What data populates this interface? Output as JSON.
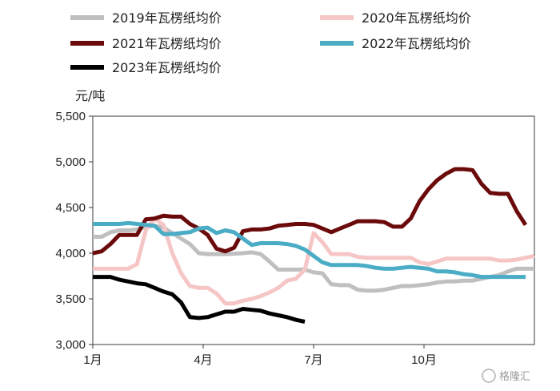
{
  "chart_data": {
    "type": "line",
    "ylabel": "元/吨",
    "ylim": [
      3000,
      5500
    ],
    "yticks": [
      3000,
      3500,
      4000,
      4500,
      5000,
      5500
    ],
    "ytick_labels": [
      "3,000",
      "3,500",
      "4,000",
      "4,500",
      "5,000",
      "5,500"
    ],
    "x_unit": "week",
    "xlim": [
      0,
      50
    ],
    "xticks": [
      {
        "x": 0,
        "label": "1月"
      },
      {
        "x": 12.5,
        "label": "4月"
      },
      {
        "x": 25,
        "label": "7月"
      },
      {
        "x": 37.5,
        "label": "10月"
      }
    ],
    "legend_placement": "top",
    "grid": false,
    "series": [
      {
        "name": "2019年瓦楞纸均价",
        "color": "#bfbfbf",
        "points": [
          [
            0,
            4180
          ],
          [
            1,
            4180
          ],
          [
            2,
            4230
          ],
          [
            3,
            4250
          ],
          [
            4,
            4250
          ],
          [
            5,
            4260
          ],
          [
            6,
            4290
          ],
          [
            7,
            4300
          ],
          [
            8,
            4280
          ],
          [
            9,
            4220
          ],
          [
            10,
            4160
          ],
          [
            11,
            4100
          ],
          [
            12,
            4000
          ],
          [
            13,
            3990
          ],
          [
            14,
            3990
          ],
          [
            15,
            3990
          ],
          [
            16,
            3995
          ],
          [
            17,
            4000
          ],
          [
            18,
            4010
          ],
          [
            19,
            3990
          ],
          [
            20,
            3910
          ],
          [
            21,
            3820
          ],
          [
            22,
            3820
          ],
          [
            23,
            3820
          ],
          [
            24,
            3820
          ],
          [
            25,
            3790
          ],
          [
            26,
            3780
          ],
          [
            27,
            3660
          ],
          [
            28,
            3650
          ],
          [
            29,
            3650
          ],
          [
            30,
            3600
          ],
          [
            31,
            3590
          ],
          [
            32,
            3590
          ],
          [
            33,
            3600
          ],
          [
            34,
            3620
          ],
          [
            35,
            3640
          ],
          [
            36,
            3640
          ],
          [
            37,
            3650
          ],
          [
            38,
            3660
          ],
          [
            39,
            3680
          ],
          [
            40,
            3690
          ],
          [
            41,
            3690
          ],
          [
            42,
            3700
          ],
          [
            43,
            3700
          ],
          [
            44,
            3720
          ],
          [
            45,
            3740
          ],
          [
            46,
            3760
          ],
          [
            47,
            3800
          ],
          [
            48,
            3830
          ],
          [
            49,
            3830
          ],
          [
            50,
            3830
          ]
        ]
      },
      {
        "name": "2020年瓦楞纸均价",
        "color": "#f6c6c6",
        "points": [
          [
            0,
            3830
          ],
          [
            1,
            3830
          ],
          [
            2,
            3830
          ],
          [
            3,
            3830
          ],
          [
            4,
            3830
          ],
          [
            5,
            3880
          ],
          [
            6,
            4250
          ],
          [
            7,
            4380
          ],
          [
            8,
            4310
          ],
          [
            9,
            4000
          ],
          [
            10,
            3780
          ],
          [
            11,
            3640
          ],
          [
            12,
            3620
          ],
          [
            13,
            3620
          ],
          [
            14,
            3560
          ],
          [
            15,
            3450
          ],
          [
            16,
            3450
          ],
          [
            17,
            3480
          ],
          [
            18,
            3500
          ],
          [
            19,
            3530
          ],
          [
            20,
            3570
          ],
          [
            21,
            3620
          ],
          [
            22,
            3700
          ],
          [
            23,
            3720
          ],
          [
            24,
            3820
          ],
          [
            25,
            4220
          ],
          [
            26,
            4120
          ],
          [
            27,
            3990
          ],
          [
            28,
            3990
          ],
          [
            29,
            3990
          ],
          [
            30,
            3960
          ],
          [
            31,
            3950
          ],
          [
            32,
            3950
          ],
          [
            33,
            3950
          ],
          [
            34,
            3950
          ],
          [
            35,
            3950
          ],
          [
            36,
            3950
          ],
          [
            37,
            3900
          ],
          [
            38,
            3880
          ],
          [
            39,
            3910
          ],
          [
            40,
            3940
          ],
          [
            41,
            3940
          ],
          [
            42,
            3940
          ],
          [
            43,
            3940
          ],
          [
            44,
            3940
          ],
          [
            45,
            3940
          ],
          [
            46,
            3920
          ],
          [
            47,
            3920
          ],
          [
            48,
            3930
          ],
          [
            49,
            3950
          ],
          [
            50,
            3970
          ]
        ]
      },
      {
        "name": "2021年瓦楞纸均价",
        "color": "#6b0a0a",
        "points": [
          [
            0,
            4000
          ],
          [
            1,
            4020
          ],
          [
            2,
            4100
          ],
          [
            3,
            4200
          ],
          [
            4,
            4200
          ],
          [
            5,
            4200
          ],
          [
            6,
            4370
          ],
          [
            7,
            4380
          ],
          [
            8,
            4410
          ],
          [
            9,
            4400
          ],
          [
            10,
            4400
          ],
          [
            11,
            4320
          ],
          [
            12,
            4270
          ],
          [
            13,
            4200
          ],
          [
            14,
            4050
          ],
          [
            15,
            4020
          ],
          [
            16,
            4060
          ],
          [
            17,
            4240
          ],
          [
            18,
            4260
          ],
          [
            19,
            4260
          ],
          [
            20,
            4270
          ],
          [
            21,
            4300
          ],
          [
            22,
            4310
          ],
          [
            23,
            4320
          ],
          [
            24,
            4320
          ],
          [
            25,
            4310
          ],
          [
            26,
            4270
          ],
          [
            27,
            4230
          ],
          [
            28,
            4270
          ],
          [
            29,
            4310
          ],
          [
            30,
            4350
          ],
          [
            31,
            4350
          ],
          [
            32,
            4350
          ],
          [
            33,
            4340
          ],
          [
            34,
            4290
          ],
          [
            35,
            4290
          ],
          [
            36,
            4380
          ],
          [
            37,
            4570
          ],
          [
            38,
            4700
          ],
          [
            39,
            4800
          ],
          [
            40,
            4870
          ],
          [
            41,
            4920
          ],
          [
            42,
            4920
          ],
          [
            43,
            4910
          ],
          [
            44,
            4760
          ],
          [
            45,
            4660
          ],
          [
            46,
            4650
          ],
          [
            47,
            4650
          ],
          [
            48,
            4460
          ],
          [
            49,
            4310
          ]
        ]
      },
      {
        "name": "2022年瓦楞纸均价",
        "color": "#4bacc6",
        "points": [
          [
            0,
            4320
          ],
          [
            1,
            4320
          ],
          [
            2,
            4320
          ],
          [
            3,
            4320
          ],
          [
            4,
            4330
          ],
          [
            5,
            4320
          ],
          [
            6,
            4310
          ],
          [
            7,
            4300
          ],
          [
            8,
            4210
          ],
          [
            9,
            4210
          ],
          [
            10,
            4220
          ],
          [
            11,
            4230
          ],
          [
            12,
            4270
          ],
          [
            13,
            4280
          ],
          [
            14,
            4220
          ],
          [
            15,
            4250
          ],
          [
            16,
            4230
          ],
          [
            17,
            4160
          ],
          [
            18,
            4090
          ],
          [
            19,
            4110
          ],
          [
            20,
            4110
          ],
          [
            21,
            4110
          ],
          [
            22,
            4100
          ],
          [
            23,
            4080
          ],
          [
            24,
            4040
          ],
          [
            25,
            3970
          ],
          [
            26,
            3900
          ],
          [
            27,
            3870
          ],
          [
            28,
            3870
          ],
          [
            29,
            3870
          ],
          [
            30,
            3870
          ],
          [
            31,
            3860
          ],
          [
            32,
            3840
          ],
          [
            33,
            3830
          ],
          [
            34,
            3830
          ],
          [
            35,
            3840
          ],
          [
            36,
            3850
          ],
          [
            37,
            3840
          ],
          [
            38,
            3830
          ],
          [
            39,
            3800
          ],
          [
            40,
            3800
          ],
          [
            41,
            3790
          ],
          [
            42,
            3770
          ],
          [
            43,
            3760
          ],
          [
            44,
            3740
          ],
          [
            45,
            3740
          ],
          [
            46,
            3740
          ],
          [
            47,
            3740
          ],
          [
            48,
            3740
          ],
          [
            49,
            3740
          ]
        ]
      },
      {
        "name": "2023年瓦楞纸均价",
        "color": "#000000",
        "points": [
          [
            0,
            3740
          ],
          [
            1,
            3740
          ],
          [
            2,
            3740
          ],
          [
            3,
            3710
          ],
          [
            4,
            3690
          ],
          [
            5,
            3670
          ],
          [
            6,
            3660
          ],
          [
            7,
            3620
          ],
          [
            8,
            3580
          ],
          [
            9,
            3550
          ],
          [
            10,
            3460
          ],
          [
            11,
            3300
          ],
          [
            12,
            3290
          ],
          [
            13,
            3300
          ],
          [
            14,
            3330
          ],
          [
            15,
            3360
          ],
          [
            16,
            3360
          ],
          [
            17,
            3390
          ],
          [
            18,
            3380
          ],
          [
            19,
            3370
          ],
          [
            20,
            3340
          ],
          [
            21,
            3320
          ],
          [
            22,
            3300
          ],
          [
            23,
            3270
          ],
          [
            24,
            3250
          ]
        ]
      }
    ]
  },
  "watermark": "格隆汇"
}
